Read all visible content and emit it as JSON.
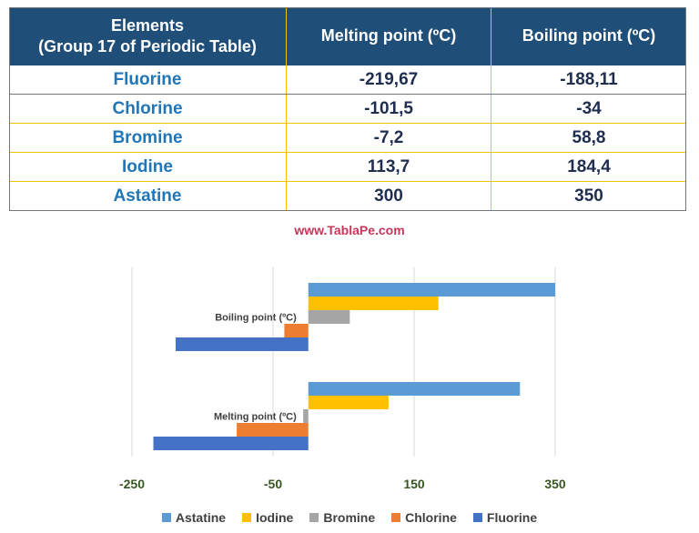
{
  "table": {
    "headers": [
      "Elements\n(Group 17 of Periodic Table)",
      "Melting point (ºC)",
      "Boiling point (ºC)"
    ],
    "rows": [
      {
        "element": "Fluorine",
        "melting": "-219,67",
        "boiling": "-188,11"
      },
      {
        "element": "Chlorine",
        "melting": "-101,5",
        "boiling": "-34"
      },
      {
        "element": "Bromine",
        "melting": "-7,2",
        "boiling": "58,8"
      },
      {
        "element": "Iodine",
        "melting": "113,7",
        "boiling": "184,4"
      },
      {
        "element": "Astatine",
        "melting": "300",
        "boiling": "350"
      }
    ]
  },
  "watermark": "www.TablaPe.com",
  "chart_data": {
    "type": "bar",
    "orientation": "horizontal",
    "categories": [
      "Melting point (ºC)",
      "Boiling point (ºC)"
    ],
    "series": [
      {
        "name": "Fluorine",
        "color": "#4472c4",
        "values": [
          -219.67,
          -188.11
        ]
      },
      {
        "name": "Chlorine",
        "color": "#ed7d31",
        "values": [
          -101.5,
          -34
        ]
      },
      {
        "name": "Bromine",
        "color": "#a5a5a5",
        "values": [
          -7.2,
          58.8
        ]
      },
      {
        "name": "Iodine",
        "color": "#ffc000",
        "values": [
          113.7,
          184.4
        ]
      },
      {
        "name": "Astatine",
        "color": "#5b9bd5",
        "values": [
          300,
          350
        ]
      }
    ],
    "xticks": [
      "-250",
      "-50",
      "150",
      "350"
    ],
    "xlim": [
      -250,
      550
    ],
    "gridlines": true,
    "legend": "bottom",
    "legend_order": [
      "Astatine",
      "Iodine",
      "Bromine",
      "Chlorine",
      "Fluorine"
    ],
    "tick_color": "#375623"
  }
}
